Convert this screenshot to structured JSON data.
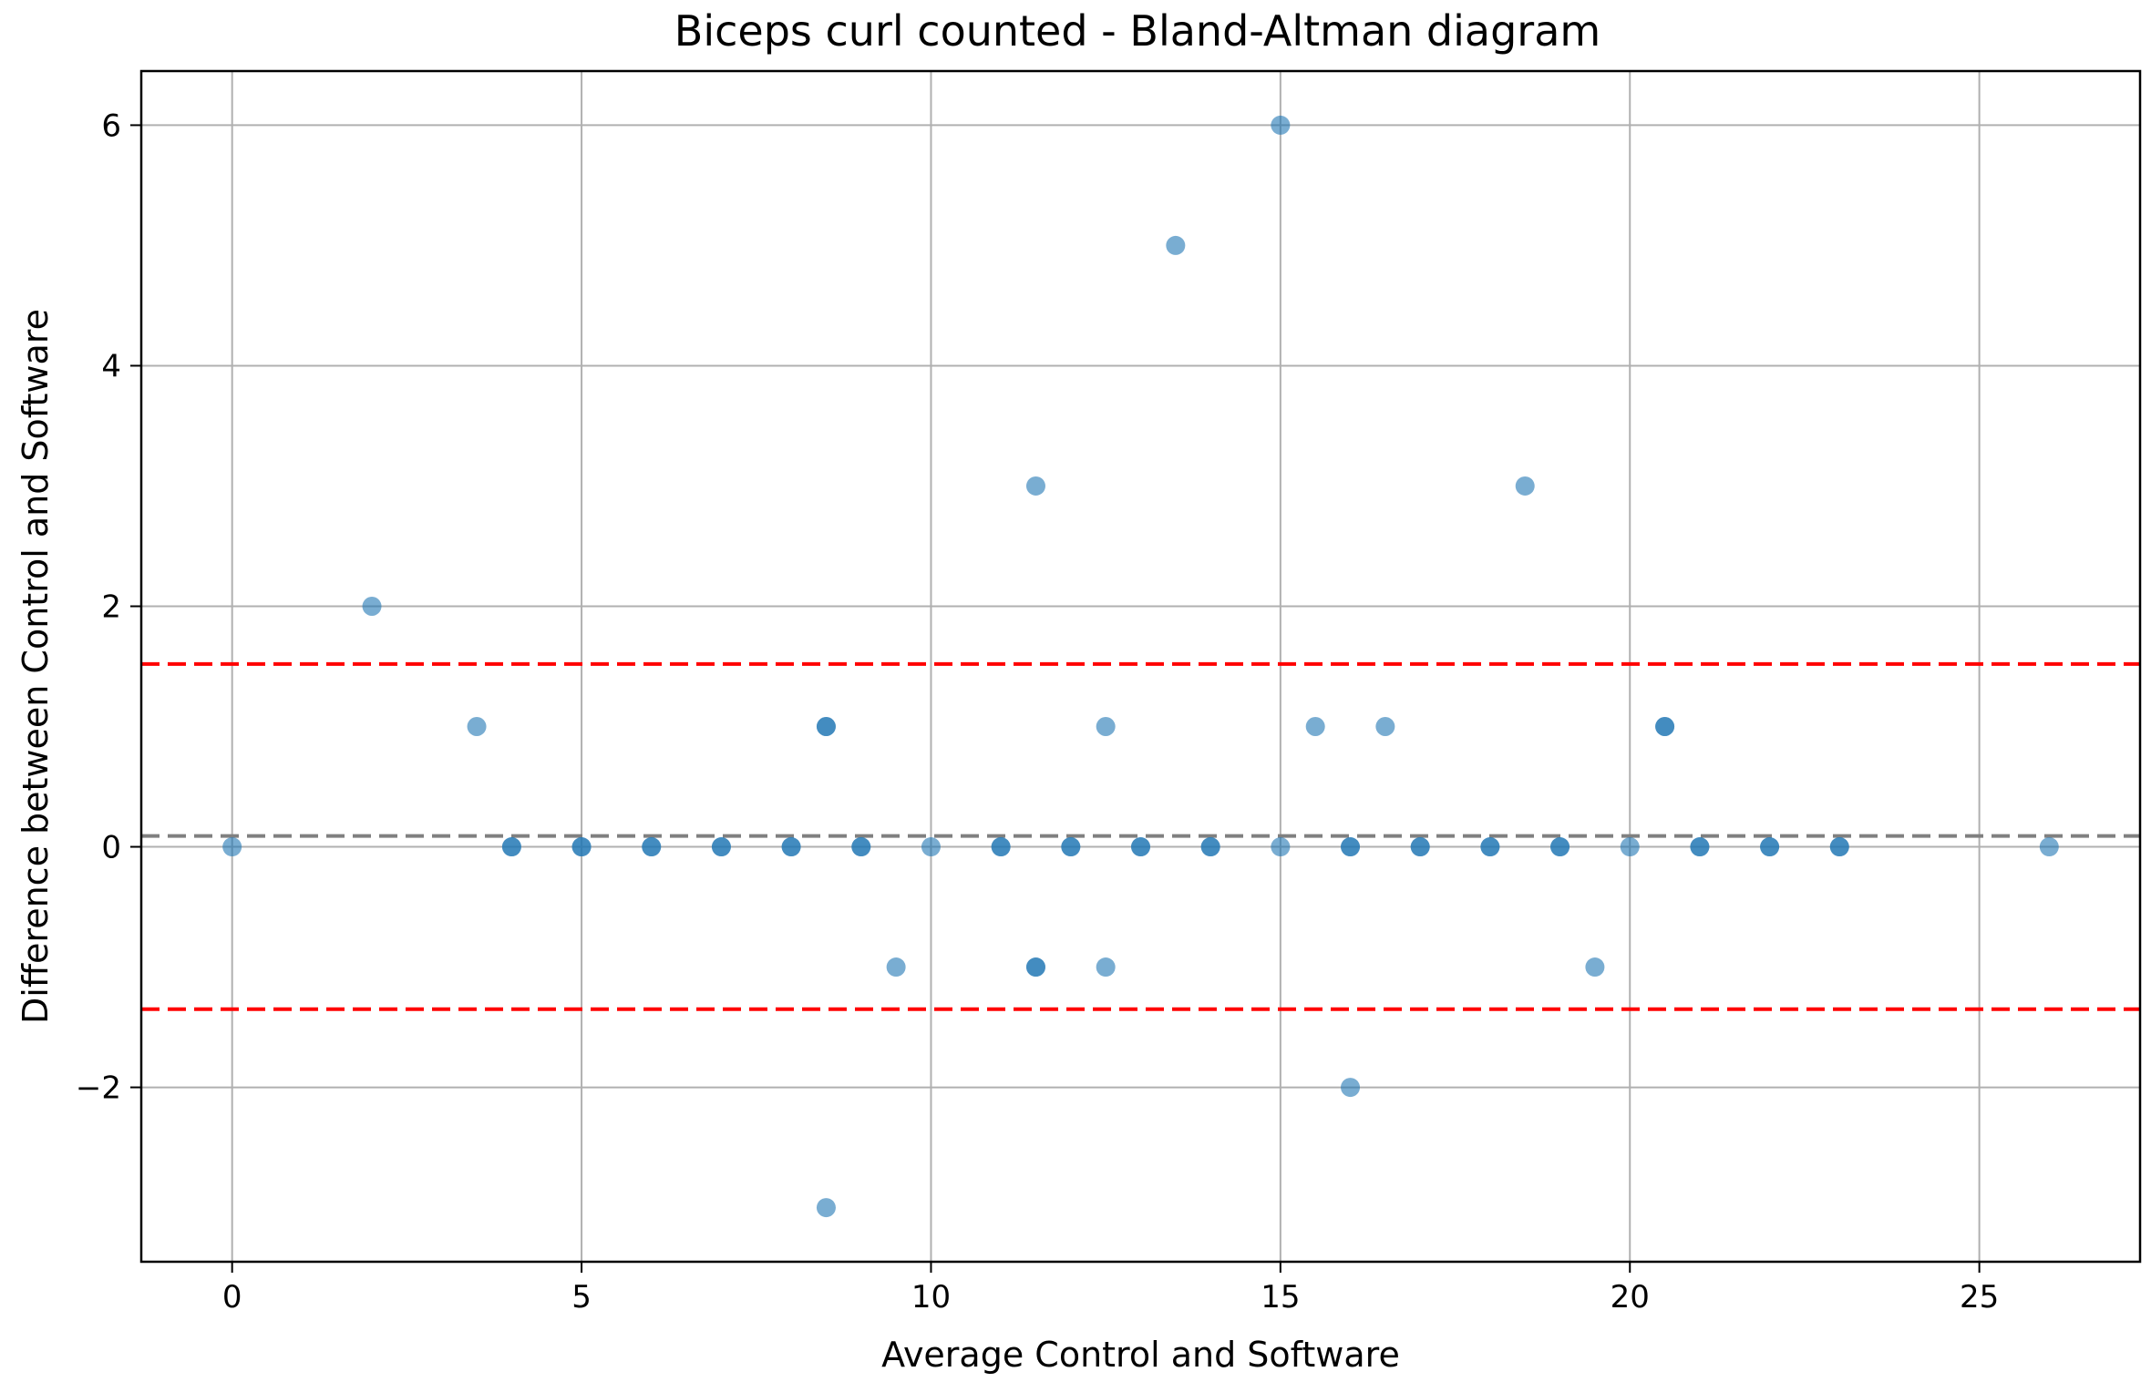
{
  "chart_data": {
    "type": "scatter",
    "title": "Biceps curl counted - Bland-Altman diagram",
    "xlabel": "Average Control and Software",
    "ylabel": "Difference between Control and Software",
    "xlim": [
      -1.3,
      27.3
    ],
    "ylim": [
      -3.45,
      6.45
    ],
    "xticks": [
      0,
      5,
      10,
      15,
      20,
      25
    ],
    "xtick_labels": [
      "0",
      "5",
      "10",
      "15",
      "20",
      "25"
    ],
    "yticks": [
      -2,
      0,
      2,
      4,
      6
    ],
    "ytick_labels": [
      "−2",
      "0",
      "2",
      "4",
      "6"
    ],
    "grid": true,
    "point_color": "#1f77b4",
    "point_opacity": 0.6,
    "reference_lines": [
      {
        "y": 0.09,
        "color": "#808080",
        "style": "dashed",
        "meaning": "mean difference"
      },
      {
        "y": 1.52,
        "color": "#ff0000",
        "style": "dashed",
        "meaning": "upper limit of agreement"
      },
      {
        "y": -1.35,
        "color": "#ff0000",
        "style": "dashed",
        "meaning": "lower limit of agreement"
      }
    ],
    "points": [
      {
        "x": 0,
        "y": 0
      },
      {
        "x": 2,
        "y": 2
      },
      {
        "x": 3.5,
        "y": 1
      },
      {
        "x": 4,
        "y": 0
      },
      {
        "x": 4,
        "y": 0
      },
      {
        "x": 5,
        "y": 0
      },
      {
        "x": 5,
        "y": 0
      },
      {
        "x": 6,
        "y": 0
      },
      {
        "x": 6,
        "y": 0
      },
      {
        "x": 7,
        "y": 0
      },
      {
        "x": 7,
        "y": 0
      },
      {
        "x": 8,
        "y": 0
      },
      {
        "x": 8,
        "y": 0
      },
      {
        "x": 8.5,
        "y": 1
      },
      {
        "x": 8.5,
        "y": 1
      },
      {
        "x": 8.5,
        "y": -3
      },
      {
        "x": 9,
        "y": 0
      },
      {
        "x": 9,
        "y": 0
      },
      {
        "x": 9.5,
        "y": -1
      },
      {
        "x": 10,
        "y": 0
      },
      {
        "x": 11,
        "y": 0
      },
      {
        "x": 11,
        "y": 0
      },
      {
        "x": 11.5,
        "y": 3
      },
      {
        "x": 11.5,
        "y": -1
      },
      {
        "x": 11.5,
        "y": -1
      },
      {
        "x": 12,
        "y": 0
      },
      {
        "x": 12,
        "y": 0
      },
      {
        "x": 12.5,
        "y": 1
      },
      {
        "x": 12.5,
        "y": -1
      },
      {
        "x": 13,
        "y": 0
      },
      {
        "x": 13,
        "y": 0
      },
      {
        "x": 13.5,
        "y": 5
      },
      {
        "x": 14,
        "y": 0
      },
      {
        "x": 14,
        "y": 0
      },
      {
        "x": 15,
        "y": 6
      },
      {
        "x": 15,
        "y": 0
      },
      {
        "x": 15.5,
        "y": 1
      },
      {
        "x": 16,
        "y": 0
      },
      {
        "x": 16,
        "y": 0
      },
      {
        "x": 16,
        "y": -2
      },
      {
        "x": 16.5,
        "y": 1
      },
      {
        "x": 17,
        "y": 0
      },
      {
        "x": 17,
        "y": 0
      },
      {
        "x": 18,
        "y": 0
      },
      {
        "x": 18,
        "y": 0
      },
      {
        "x": 18.5,
        "y": 3
      },
      {
        "x": 19,
        "y": 0
      },
      {
        "x": 19,
        "y": 0
      },
      {
        "x": 19.5,
        "y": -1
      },
      {
        "x": 20,
        "y": 0
      },
      {
        "x": 20.5,
        "y": 1
      },
      {
        "x": 20.5,
        "y": 1
      },
      {
        "x": 21,
        "y": 0
      },
      {
        "x": 21,
        "y": 0
      },
      {
        "x": 22,
        "y": 0
      },
      {
        "x": 22,
        "y": 0
      },
      {
        "x": 23,
        "y": 0
      },
      {
        "x": 23,
        "y": 0
      },
      {
        "x": 26,
        "y": 0
      }
    ]
  }
}
